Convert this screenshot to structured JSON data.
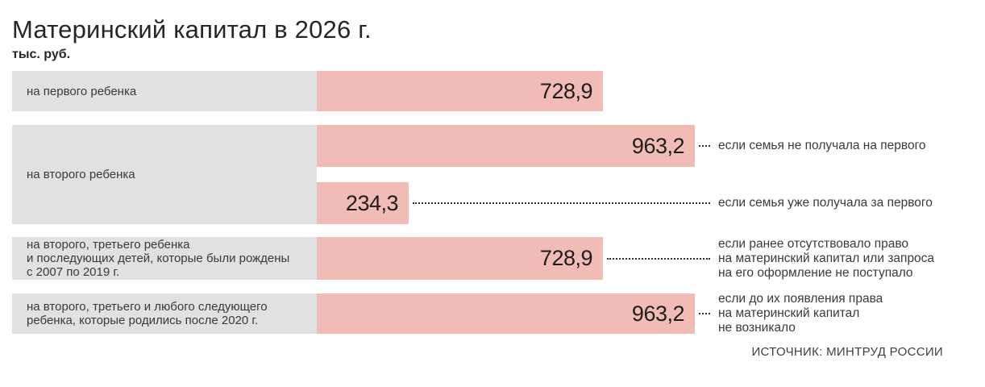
{
  "header": {
    "title": "Материнский капитал в 2026 г.",
    "unit": "тыс. руб."
  },
  "source": "ИСТОЧНИК: МИНТРУД РОССИИ",
  "colors": {
    "bar": "#f2bcb6",
    "label_bg": "#e0e1e2",
    "text": "#3a3a3a",
    "value_text": "#1d1d1d"
  },
  "chart_data": {
    "type": "bar",
    "orientation": "horizontal",
    "title": "Материнский капитал в 2026 г.",
    "xlabel": "тыс. руб.",
    "ylabel": "",
    "xlim": [
      0,
      1000
    ],
    "grid": false,
    "legend": false,
    "groups": [
      {
        "category": "на первого ребенка",
        "bars": [
          {
            "value": 728.9,
            "label": "728,9",
            "note": ""
          }
        ]
      },
      {
        "category": "на второго ребенка",
        "bars": [
          {
            "value": 963.2,
            "label": "963,2",
            "note": "если семья не получала на первого"
          },
          {
            "value": 234.3,
            "label": "234,3",
            "note": "если семья уже получала за первого"
          }
        ]
      },
      {
        "category": [
          "на второго, третьего ребенка",
          "и последующих детей, которые были рождены",
          "с 2007 по 2019 г."
        ],
        "bars": [
          {
            "value": 728.9,
            "label": "728,9",
            "note": [
              "если ранее отсутствовало право",
              "на материнский капитал или запроса",
              "на его оформление не поступало"
            ]
          }
        ]
      },
      {
        "category": [
          "на второго, третьего и любого следующего",
          "ребенка, которые родились после 2020 г."
        ],
        "bars": [
          {
            "value": 963.2,
            "label": "963,2",
            "note": [
              "если до их появления права",
              "на материнский капитал",
              "не возникало"
            ]
          }
        ]
      }
    ]
  }
}
